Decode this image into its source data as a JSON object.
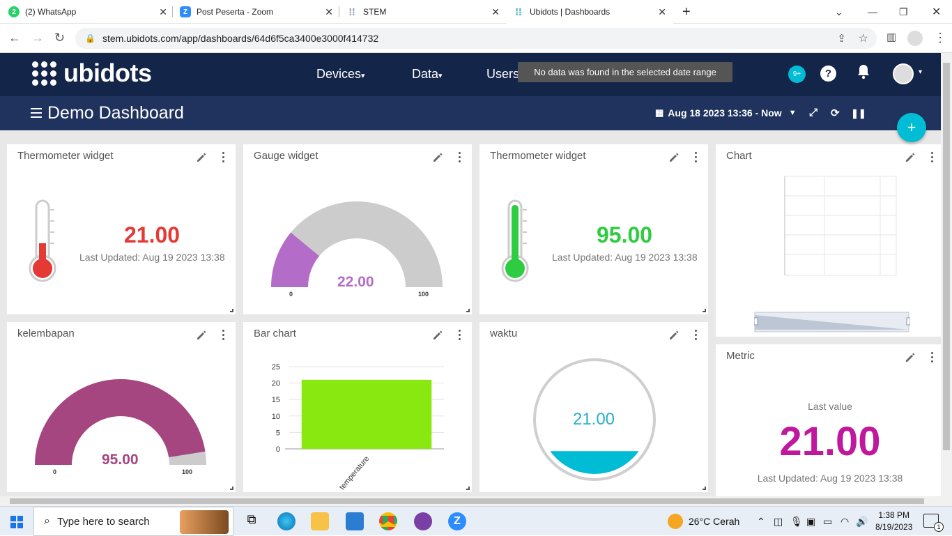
{
  "browser": {
    "tabs": [
      {
        "label": "(2) WhatsApp",
        "fav": "2",
        "color": "#25d366"
      },
      {
        "label": "Post Peserta - Zoom",
        "fav": "Z",
        "color": "#2d8cff"
      },
      {
        "label": "STEM",
        "fav": "",
        "color": "#7b8fa6"
      },
      {
        "label": "Ubidots | Dashboards",
        "fav": "",
        "color": "#20a0c0"
      }
    ],
    "url": "stem.ubidots.com/app/dashboards/64d6f5ca3400e3000f414732"
  },
  "app": {
    "brand": "ubidots",
    "menu": {
      "devices": "Devices",
      "data": "Data",
      "users": "Users"
    },
    "notif_badge": "9+",
    "help": "?",
    "tooltip": "No data was found in the selected date range",
    "dashboard_title": "Demo Dashboard",
    "date_range": "Aug 18 2023 13:36 - Now"
  },
  "widgets": {
    "thermo1": {
      "title": "Thermometer widget",
      "value": "21.00",
      "updated": "Last Updated: Aug 19 2023 13:38",
      "color": "#e53935",
      "level": 0.25
    },
    "gauge1": {
      "title": "Gauge widget",
      "value": "22.00",
      "min": "0",
      "max": "100",
      "color": "#b36cc7",
      "fraction": 0.22
    },
    "thermo2": {
      "title": "Thermometer widget",
      "value": "95.00",
      "updated": "Last Updated: Aug 19 2023 13:38",
      "color": "#2ecc40",
      "level": 0.95
    },
    "chart": {
      "title": "Chart"
    },
    "gauge2": {
      "title": "kelembapan",
      "value": "95.00",
      "min": "0",
      "max": "100",
      "color": "#a54680",
      "fraction": 0.95
    },
    "barchart": {
      "title": "Bar chart",
      "category": "temperature",
      "value": 21,
      "yticks": [
        "25",
        "20",
        "15",
        "10",
        "5",
        "0"
      ],
      "color": "#88e80f"
    },
    "tank": {
      "title": "waktu",
      "value": "21.00",
      "color": "#00bcd4",
      "level": 0.21
    },
    "metric": {
      "title": "Metric",
      "label": "Last value",
      "value": "21.00",
      "updated": "Last Updated: Aug 19 2023 13:38",
      "color": "#c0189d"
    }
  },
  "chart_data": {
    "type": "bar",
    "categories": [
      "temperature"
    ],
    "values": [
      21
    ],
    "ylim": [
      0,
      25
    ]
  },
  "taskbar": {
    "search_placeholder": "Type here to search",
    "weather": "26°C  Cerah",
    "time": "1:38 PM",
    "date": "8/19/2023",
    "notif_count": "1"
  }
}
